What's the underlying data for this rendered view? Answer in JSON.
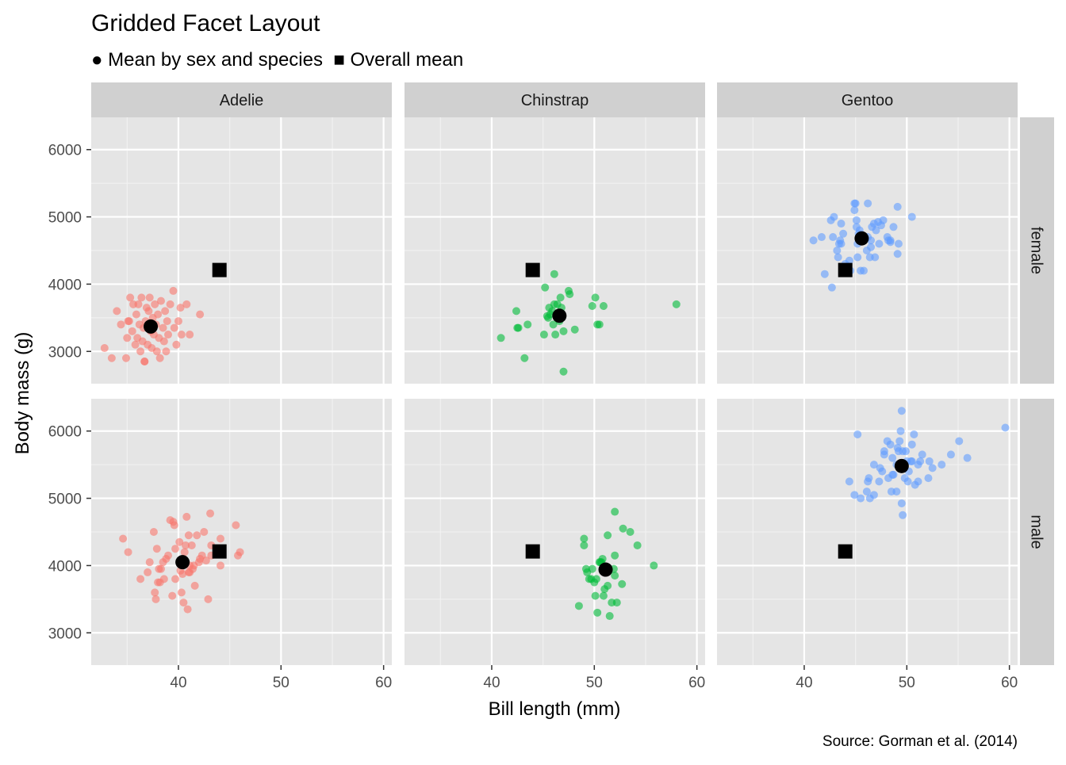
{
  "colors": {
    "panel_bg": "#E5E5E5",
    "strip_bg": "#D0D0D0",
    "grid_major": "#FFFFFF",
    "grid_minor": "#F2F2F2",
    "axis_text": "#4D4D4D",
    "mean_marker": "#000000",
    "species": {
      "Adelie": "#F8766D",
      "Chinstrap": "#00BA38",
      "Gentoo": "#619CFF"
    }
  },
  "chart_data": {
    "type": "scatter",
    "title": "Gridded Facet Layout",
    "subtitle": "● Mean by sex and species  ■ Overall mean",
    "caption": "Source: Gorman et al. (2014)",
    "xlabel": "Bill length (mm)",
    "ylabel": "Body mass (g)",
    "xlim": [
      31.5,
      60.8
    ],
    "ylim": [
      2520,
      6480
    ],
    "x_ticks": [
      40,
      50,
      60
    ],
    "y_ticks": [
      3000,
      4000,
      5000,
      6000
    ],
    "x_minor": [
      35,
      45,
      55
    ],
    "y_minor": [
      3500,
      4500,
      5500
    ],
    "grid": true,
    "facet_cols": [
      "Adelie",
      "Chinstrap",
      "Gentoo"
    ],
    "facet_rows": [
      "female",
      "male"
    ],
    "overall_mean": {
      "x": 44.0,
      "y": 4210
    },
    "panels": [
      {
        "species": "Adelie",
        "sex": "female",
        "mean": {
          "x": 37.3,
          "y": 3370
        },
        "points": [
          [
            32.8,
            3050
          ],
          [
            33.5,
            2900
          ],
          [
            34.0,
            3600
          ],
          [
            34.4,
            3400
          ],
          [
            34.9,
            2900
          ],
          [
            35.0,
            3200
          ],
          [
            35.1,
            3450
          ],
          [
            35.3,
            3800
          ],
          [
            35.5,
            3300
          ],
          [
            35.6,
            3700
          ],
          [
            35.8,
            3100
          ],
          [
            35.9,
            3550
          ],
          [
            36.0,
            3200
          ],
          [
            36.1,
            3700
          ],
          [
            36.2,
            3400
          ],
          [
            36.3,
            3000
          ],
          [
            36.4,
            3800
          ],
          [
            36.5,
            3150
          ],
          [
            36.6,
            3350
          ],
          [
            36.7,
            2850
          ],
          [
            36.8,
            3450
          ],
          [
            36.9,
            3650
          ],
          [
            37.0,
            3100
          ],
          [
            37.1,
            3600
          ],
          [
            37.2,
            3800
          ],
          [
            37.3,
            3300
          ],
          [
            37.4,
            3050
          ],
          [
            37.5,
            3500
          ],
          [
            37.6,
            3250
          ],
          [
            37.7,
            3700
          ],
          [
            37.8,
            3400
          ],
          [
            37.9,
            3000
          ],
          [
            38.0,
            3550
          ],
          [
            38.1,
            3200
          ],
          [
            38.2,
            2900
          ],
          [
            38.3,
            3750
          ],
          [
            38.5,
            3350
          ],
          [
            38.6,
            3150
          ],
          [
            38.7,
            3600
          ],
          [
            38.8,
            3000
          ],
          [
            38.9,
            3450
          ],
          [
            39.0,
            3250
          ],
          [
            39.2,
            3700
          ],
          [
            39.5,
            3900
          ],
          [
            39.6,
            3350
          ],
          [
            39.8,
            3100
          ],
          [
            40.0,
            3450
          ],
          [
            40.2,
            3650
          ],
          [
            40.3,
            3250
          ],
          [
            40.8,
            3700
          ],
          [
            41.1,
            3250
          ],
          [
            42.1,
            3550
          ],
          [
            36.7,
            2850
          ],
          [
            35.2,
            3450
          ]
        ]
      },
      {
        "species": "Chinstrap",
        "sex": "female",
        "mean": {
          "x": 46.6,
          "y": 3530
        },
        "points": [
          [
            40.9,
            3200
          ],
          [
            42.4,
            3600
          ],
          [
            42.5,
            3350
          ],
          [
            42.6,
            3350
          ],
          [
            43.2,
            2900
          ],
          [
            43.5,
            3400
          ],
          [
            45.1,
            3250
          ],
          [
            45.2,
            3950
          ],
          [
            45.4,
            3525
          ],
          [
            45.5,
            3500
          ],
          [
            45.6,
            3650
          ],
          [
            45.7,
            3550
          ],
          [
            45.9,
            3600
          ],
          [
            46.0,
            3400
          ],
          [
            46.1,
            3700
          ],
          [
            46.1,
            4150
          ],
          [
            46.2,
            3250
          ],
          [
            46.4,
            3700
          ],
          [
            46.5,
            3500
          ],
          [
            46.6,
            3450
          ],
          [
            46.7,
            3800
          ],
          [
            46.8,
            3650
          ],
          [
            46.9,
            3525
          ],
          [
            47.0,
            3300
          ],
          [
            47.0,
            2700
          ],
          [
            47.5,
            3900
          ],
          [
            47.6,
            3850
          ],
          [
            48.1,
            3325
          ],
          [
            49.8,
            3675
          ],
          [
            50.1,
            3800
          ],
          [
            50.3,
            3400
          ],
          [
            50.5,
            3400
          ],
          [
            50.9,
            3675
          ],
          [
            58.0,
            3700
          ]
        ]
      },
      {
        "species": "Gentoo",
        "sex": "female",
        "mean": {
          "x": 45.6,
          "y": 4680
        },
        "points": [
          [
            40.9,
            4650
          ],
          [
            41.7,
            4700
          ],
          [
            42.0,
            4150
          ],
          [
            42.6,
            4950
          ],
          [
            42.7,
            3950
          ],
          [
            42.8,
            4700
          ],
          [
            42.9,
            5000
          ],
          [
            43.2,
            4500
          ],
          [
            43.3,
            4400
          ],
          [
            43.4,
            4600
          ],
          [
            43.5,
            4650
          ],
          [
            43.6,
            4900
          ],
          [
            43.8,
            4750
          ],
          [
            44.0,
            4300
          ],
          [
            44.4,
            4350
          ],
          [
            44.5,
            4200
          ],
          [
            44.9,
            5100
          ],
          [
            45.0,
            5200
          ],
          [
            45.1,
            4850
          ],
          [
            45.2,
            4400
          ],
          [
            45.3,
            4750
          ],
          [
            45.4,
            4800
          ],
          [
            45.5,
            4200
          ],
          [
            45.7,
            4700
          ],
          [
            45.8,
            4200
          ],
          [
            46.1,
            4500
          ],
          [
            46.2,
            4700
          ],
          [
            46.4,
            4400
          ],
          [
            46.5,
            4650
          ],
          [
            46.6,
            4850
          ],
          [
            46.8,
            4900
          ],
          [
            46.9,
            4400
          ],
          [
            47.0,
            4800
          ],
          [
            47.2,
            4925
          ],
          [
            47.3,
            4600
          ],
          [
            47.5,
            4875
          ],
          [
            47.7,
            4950
          ],
          [
            48.1,
            4700
          ],
          [
            48.2,
            4650
          ],
          [
            48.4,
            4625
          ],
          [
            48.7,
            4850
          ],
          [
            49.1,
            4450
          ],
          [
            49.2,
            4600
          ],
          [
            50.5,
            5000
          ],
          [
            44.9,
            5200
          ],
          [
            45.1,
            4950
          ],
          [
            46.2,
            5200
          ],
          [
            48.4,
            4650
          ],
          [
            49.1,
            5150
          ],
          [
            45.2,
            4600
          ],
          [
            43.6,
            4600
          ],
          [
            46.5,
            4550
          ]
        ]
      },
      {
        "species": "Adelie",
        "sex": "male",
        "mean": {
          "x": 40.4,
          "y": 4050
        },
        "points": [
          [
            34.6,
            4400
          ],
          [
            35.1,
            4200
          ],
          [
            36.3,
            3800
          ],
          [
            37.0,
            3900
          ],
          [
            37.2,
            4050
          ],
          [
            37.6,
            4500
          ],
          [
            37.7,
            3600
          ],
          [
            37.8,
            3500
          ],
          [
            37.9,
            4250
          ],
          [
            38.0,
            3750
          ],
          [
            38.1,
            3950
          ],
          [
            38.2,
            3750
          ],
          [
            38.3,
            3950
          ],
          [
            38.5,
            4050
          ],
          [
            38.6,
            3800
          ],
          [
            38.8,
            4100
          ],
          [
            39.0,
            4150
          ],
          [
            39.2,
            4675
          ],
          [
            39.4,
            3550
          ],
          [
            39.5,
            4650
          ],
          [
            39.6,
            4600
          ],
          [
            39.7,
            3800
          ],
          [
            40.1,
            4350
          ],
          [
            40.3,
            3600
          ],
          [
            40.4,
            3875
          ],
          [
            40.5,
            3450
          ],
          [
            40.6,
            4200
          ],
          [
            40.7,
            4300
          ],
          [
            40.8,
            4725
          ],
          [
            40.9,
            3350
          ],
          [
            41.0,
            4450
          ],
          [
            41.1,
            3900
          ],
          [
            41.3,
            4300
          ],
          [
            41.4,
            3950
          ],
          [
            41.5,
            4000
          ],
          [
            41.6,
            3700
          ],
          [
            41.8,
            4450
          ],
          [
            42.0,
            4050
          ],
          [
            42.1,
            4100
          ],
          [
            42.3,
            4150
          ],
          [
            42.5,
            4500
          ],
          [
            42.7,
            4075
          ],
          [
            42.9,
            3500
          ],
          [
            43.1,
            4775
          ],
          [
            43.2,
            4150
          ],
          [
            44.1,
            4000
          ],
          [
            44.1,
            4400
          ],
          [
            45.6,
            4600
          ],
          [
            45.8,
            4150
          ],
          [
            46.0,
            4200
          ],
          [
            39.7,
            4250
          ],
          [
            40.2,
            3925
          ],
          [
            41.0,
            3900
          ],
          [
            41.1,
            4000
          ],
          [
            43.2,
            4300
          ]
        ]
      },
      {
        "species": "Chinstrap",
        "sex": "male",
        "mean": {
          "x": 51.1,
          "y": 3940
        },
        "points": [
          [
            48.5,
            3400
          ],
          [
            49.0,
            4400
          ],
          [
            49.2,
            3950
          ],
          [
            49.3,
            3900
          ],
          [
            49.5,
            3800
          ],
          [
            49.7,
            3800
          ],
          [
            49.8,
            3950
          ],
          [
            50.0,
            3750
          ],
          [
            50.2,
            3800
          ],
          [
            50.5,
            4050
          ],
          [
            50.6,
            4050
          ],
          [
            50.7,
            4050
          ],
          [
            50.8,
            4100
          ],
          [
            51.0,
            3650
          ],
          [
            51.3,
            3700
          ],
          [
            51.4,
            3950
          ],
          [
            51.5,
            3250
          ],
          [
            51.7,
            3450
          ],
          [
            51.9,
            3950
          ],
          [
            52.0,
            4800
          ],
          [
            52.2,
            3450
          ],
          [
            52.7,
            3725
          ],
          [
            52.8,
            4550
          ],
          [
            53.5,
            4500
          ],
          [
            54.2,
            4300
          ],
          [
            55.8,
            4000
          ],
          [
            49.0,
            4300
          ],
          [
            50.9,
            3550
          ],
          [
            50.3,
            3300
          ],
          [
            51.3,
            4450
          ],
          [
            52.0,
            4150
          ],
          [
            52.0,
            3850
          ],
          [
            50.1,
            3550
          ]
        ]
      },
      {
        "species": "Gentoo",
        "sex": "male",
        "mean": {
          "x": 49.5,
          "y": 5480
        },
        "points": [
          [
            44.4,
            5250
          ],
          [
            44.9,
            5050
          ],
          [
            45.2,
            5950
          ],
          [
            45.5,
            5000
          ],
          [
            46.1,
            5100
          ],
          [
            46.2,
            5250
          ],
          [
            46.3,
            5300
          ],
          [
            46.4,
            5000
          ],
          [
            46.8,
            5500
          ],
          [
            47.3,
            5250
          ],
          [
            47.4,
            5450
          ],
          [
            47.6,
            5400
          ],
          [
            47.8,
            5650
          ],
          [
            48.1,
            5850
          ],
          [
            48.2,
            5300
          ],
          [
            48.4,
            5800
          ],
          [
            48.5,
            5100
          ],
          [
            48.6,
            5600
          ],
          [
            48.7,
            5350
          ],
          [
            49.0,
            5500
          ],
          [
            49.1,
            5750
          ],
          [
            49.2,
            5700
          ],
          [
            49.3,
            5850
          ],
          [
            49.4,
            6000
          ],
          [
            49.5,
            4925
          ],
          [
            49.6,
            5700
          ],
          [
            49.8,
            5300
          ],
          [
            49.9,
            5700
          ],
          [
            50.0,
            5550
          ],
          [
            50.1,
            5250
          ],
          [
            50.2,
            5400
          ],
          [
            50.4,
            5550
          ],
          [
            50.5,
            5550
          ],
          [
            50.7,
            5950
          ],
          [
            50.8,
            5200
          ],
          [
            51.1,
            5250
          ],
          [
            51.3,
            5550
          ],
          [
            51.5,
            5650
          ],
          [
            52.1,
            5300
          ],
          [
            52.2,
            5550
          ],
          [
            52.5,
            5450
          ],
          [
            53.4,
            5500
          ],
          [
            54.3,
            5650
          ],
          [
            55.1,
            5850
          ],
          [
            55.9,
            5600
          ],
          [
            59.6,
            6050
          ],
          [
            49.5,
            6300
          ],
          [
            49.6,
            4750
          ],
          [
            47.8,
            5700
          ],
          [
            46.8,
            5050
          ],
          [
            49.0,
            5100
          ],
          [
            50.5,
            5800
          ],
          [
            51.1,
            5500
          ],
          [
            48.6,
            5350
          ]
        ]
      }
    ]
  }
}
